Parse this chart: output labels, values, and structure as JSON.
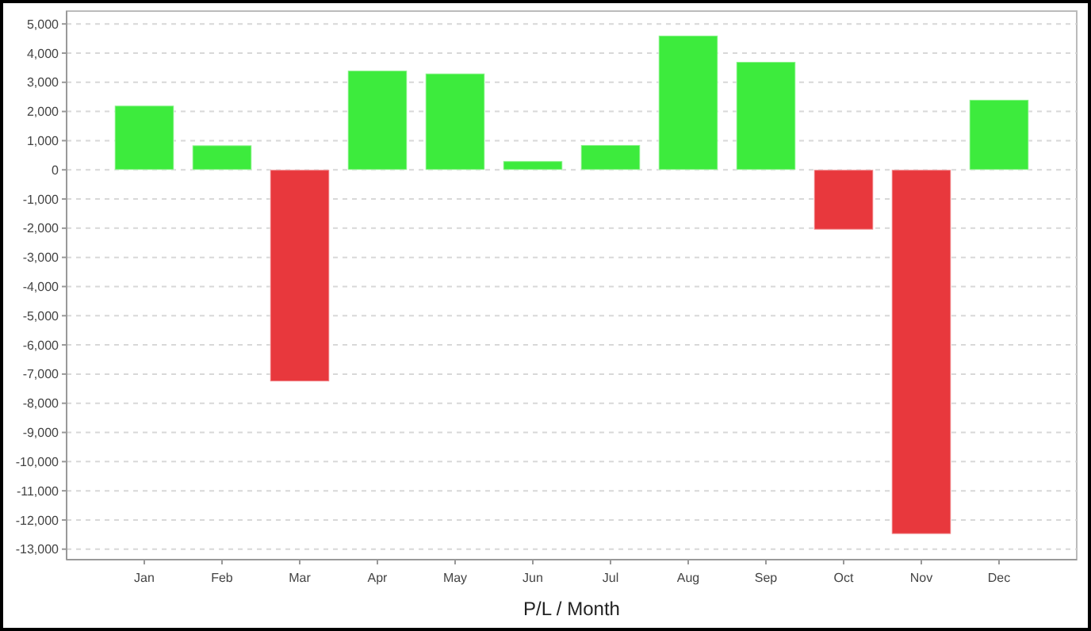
{
  "chart_data": {
    "type": "bar",
    "xlabel": "P/L / Month",
    "categories": [
      "Jan",
      "Feb",
      "Mar",
      "Apr",
      "May",
      "Jun",
      "Jul",
      "Aug",
      "Sep",
      "Oct",
      "Nov",
      "Dec"
    ],
    "values": [
      2200,
      840,
      -7250,
      3400,
      3300,
      300,
      850,
      4600,
      3700,
      -2050,
      -12480,
      2400
    ],
    "colors": [
      "#3deb3d",
      "#3deb3d",
      "#e8383d",
      "#3deb3d",
      "#3deb3d",
      "#3deb3d",
      "#3deb3d",
      "#3deb3d",
      "#3deb3d",
      "#e8383d",
      "#e8383d",
      "#3deb3d"
    ],
    "ylim": [
      -13360,
      5440
    ],
    "yticks": [
      {
        "value": 5000,
        "label": "5,000"
      },
      {
        "value": 4000,
        "label": "4,000"
      },
      {
        "value": 3000,
        "label": "3,000"
      },
      {
        "value": 2000,
        "label": "2,000"
      },
      {
        "value": 1000,
        "label": "1,000"
      },
      0,
      {
        "value": -1000,
        "label": "-1,000"
      },
      {
        "value": -2000,
        "label": "-2,000"
      },
      {
        "value": -3000,
        "label": "-3,000"
      },
      {
        "value": -4000,
        "label": "-4,000"
      },
      {
        "value": -5000,
        "label": "-5,000"
      },
      {
        "value": -6000,
        "label": "-6,000"
      },
      {
        "value": -7000,
        "label": "-7,000"
      },
      {
        "value": -8000,
        "label": "-8,000"
      },
      {
        "value": -9000,
        "label": "-9,000"
      },
      {
        "value": -10000,
        "label": "-10,000"
      },
      {
        "value": -11000,
        "label": "-11,000"
      },
      {
        "value": -12000,
        "label": "-12,000"
      },
      {
        "value": -13000,
        "label": "-13,000"
      }
    ],
    "grid": "y"
  }
}
